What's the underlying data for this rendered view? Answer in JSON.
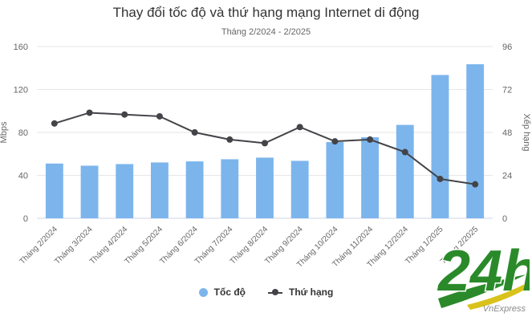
{
  "chart_data": {
    "type": "bar+line",
    "title": "Thay đổi tốc độ và thứ hạng mạng Internet di động",
    "subtitle": "Tháng 2/2024 - 2/2025",
    "categories": [
      "Tháng 2/2024",
      "Tháng 3/2024",
      "Tháng 4/2024",
      "Tháng 5/2024",
      "Tháng 6/2024",
      "Tháng 7/2024",
      "Tháng 8/2024",
      "Tháng 9/2024",
      "Tháng 10/2024",
      "Tháng 11/2024",
      "Tháng 12/2024",
      "Tháng 1/2025",
      "Tháng 2/2025"
    ],
    "series": [
      {
        "name": "Tốc độ",
        "type": "bar",
        "axis": "left",
        "color": "#7cb5ec",
        "values": [
          51,
          49,
          50.5,
          52,
          53,
          55,
          56.5,
          53.5,
          71,
          75.5,
          87,
          133.5,
          143.5
        ]
      },
      {
        "name": "Thứ hạng",
        "type": "line",
        "axis": "right",
        "color": "#434348",
        "values": [
          53,
          59,
          58,
          57,
          48,
          44,
          42,
          51,
          43,
          44,
          37,
          22,
          19
        ]
      }
    ],
    "ylabel": "Mbps",
    "ylim": [
      0,
      160
    ],
    "yticks": [
      0,
      40,
      80,
      120,
      160
    ],
    "y2label": "Xếp hạng",
    "y2lim": [
      0,
      96
    ],
    "y2ticks": [
      0,
      24,
      48,
      72,
      96
    ],
    "grid": true,
    "legend": "bottom-center"
  },
  "logo": {
    "text": "24h"
  },
  "credit": "VnExpress"
}
